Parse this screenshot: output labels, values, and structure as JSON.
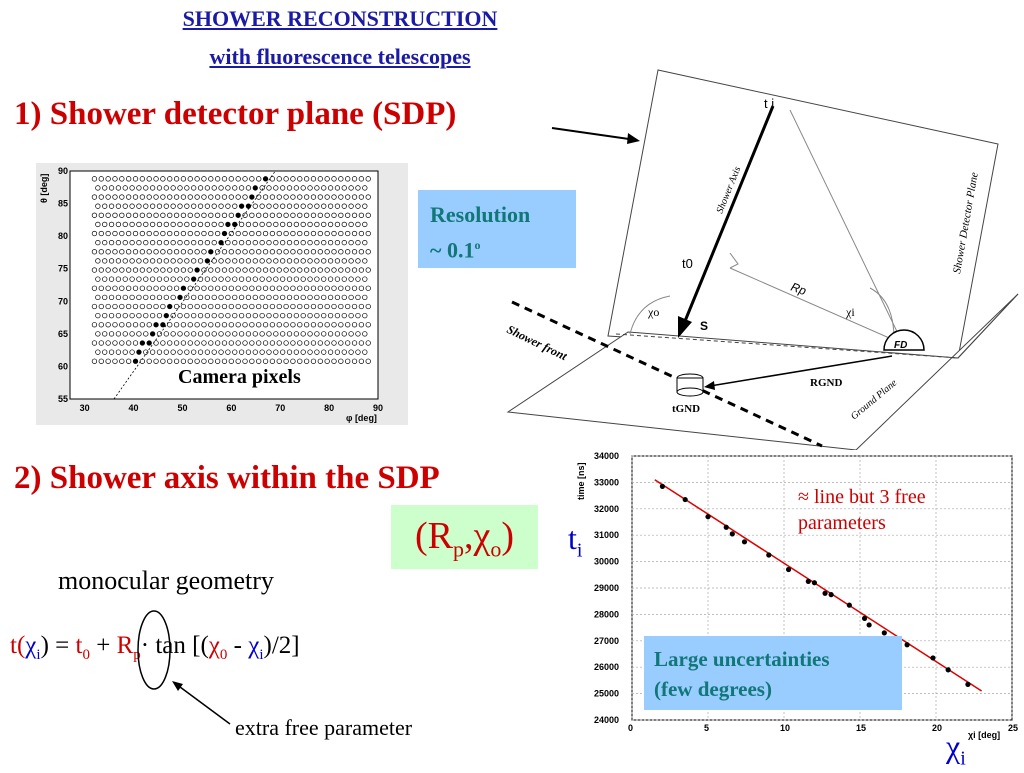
{
  "title": {
    "line1": "SHOWER RECONSTRUCTION",
    "line2": "with fluorescence telescopes"
  },
  "section1": {
    "heading": "1) Shower detector plane (SDP)"
  },
  "camera": {
    "caption": "Camera pixels",
    "ylabel": "θ [deg]",
    "xlabel": "φ [deg]",
    "yticks": [
      "55",
      "60",
      "65",
      "70",
      "75",
      "80",
      "85",
      "90"
    ],
    "xticks": [
      "30",
      "40",
      "50",
      "60",
      "70",
      "80",
      "90"
    ]
  },
  "resolution": {
    "line1": "Resolution",
    "line2": "~ 0.1",
    "sup": "o"
  },
  "diagram": {
    "ti": "t i",
    "shower_axis": "Shower Axis",
    "sdp": "Shower Detector Plane",
    "t0": "t0",
    "rp": "Rp",
    "chi0": "χo",
    "chii": "χi",
    "s": "S",
    "fd": "FD",
    "shower_front": "Shower front",
    "rgnd": "RGND",
    "tgnd": "tGND",
    "ground_plane": "Ground Plane"
  },
  "section2": {
    "heading": "2) Shower axis within the SDP"
  },
  "params_box": {
    "text": "(Rp,χo)"
  },
  "monocular": "monocular geometry",
  "equation": {
    "t": "t(",
    "chi_i": "χ",
    "i": "i",
    "close": ") = ",
    "t0": "t",
    "zero": "0",
    "plus": " + ",
    "rp": "R",
    "p": "p",
    "tan": "·  tan  [(",
    "chi0": "χ",
    "o": "0",
    "minus": " - ",
    "chi_i2": "χ",
    "i2": "i",
    "end": ")/2]"
  },
  "extra_free": "extra free parameter",
  "time_plot": {
    "ylabel_axis": "time [ns]",
    "xlabel_axis": "χi [deg]",
    "ti_label": "t",
    "ti_sub": "i",
    "chii_label": "χ",
    "chii_sub": "i",
    "annotation_line1": "≈ line but 3 free",
    "annotation_line2": "parameters",
    "uncertainty_line1": "Large uncertainties",
    "uncertainty_line2": "(few degrees)",
    "line_color": "#dd0000"
  },
  "chart_data": {
    "type": "scatter",
    "xlabel": "χi [deg]",
    "ylabel": "time [ns]",
    "xlim": [
      0,
      25
    ],
    "ylim": [
      24000,
      34000
    ],
    "xticks": [
      0,
      5,
      10,
      15,
      20,
      25
    ],
    "yticks": [
      24000,
      25000,
      26000,
      27000,
      28000,
      29000,
      30000,
      31000,
      32000,
      33000,
      34000
    ],
    "x": [
      2.0,
      3.5,
      5.0,
      6.2,
      6.6,
      7.4,
      9.0,
      10.3,
      11.6,
      12.0,
      12.7,
      13.1,
      14.3,
      15.3,
      15.6,
      16.6,
      18.1,
      19.8,
      20.8,
      22.1
    ],
    "y": [
      32850,
      32350,
      31700,
      31300,
      31050,
      30750,
      30250,
      29700,
      29250,
      29200,
      28800,
      28750,
      28350,
      27850,
      27600,
      27300,
      26850,
      26350,
      25900,
      25350
    ],
    "fit_line": {
      "x": [
        1.5,
        23.0
      ],
      "y": [
        33100,
        25100
      ]
    },
    "grid": true
  }
}
